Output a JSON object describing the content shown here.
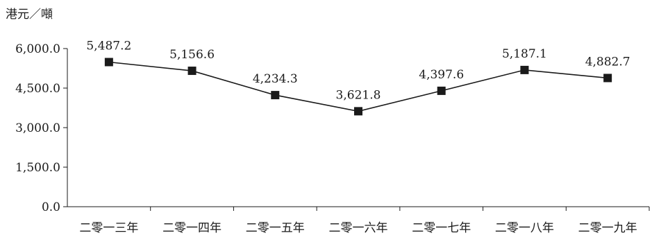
{
  "unit_label": "港元／噸",
  "chart_data": {
    "type": "line",
    "categories": [
      "二零一三年",
      "二零一四年",
      "二零一五年",
      "二零一六年",
      "二零一七年",
      "二零一八年",
      "二零一九年"
    ],
    "values": [
      5487.2,
      5156.6,
      4234.3,
      3621.8,
      4397.6,
      5187.1,
      4882.7
    ],
    "data_labels": [
      "5,487.2",
      "5,156.6",
      "4,234.3",
      "3,621.8",
      "4,397.6",
      "5,187.1",
      "4,882.7"
    ],
    "yticks": [
      0,
      1500,
      3000,
      4500,
      6000
    ],
    "ytick_labels": [
      "0.0",
      "1,500.0",
      "3,000.0",
      "4,500.0",
      "6,000.0"
    ],
    "ylim": [
      0,
      6000
    ],
    "ylabel": "港元／噸",
    "grid": false,
    "legend": "none",
    "marker": "square",
    "line_color": "#1a1a1a"
  }
}
